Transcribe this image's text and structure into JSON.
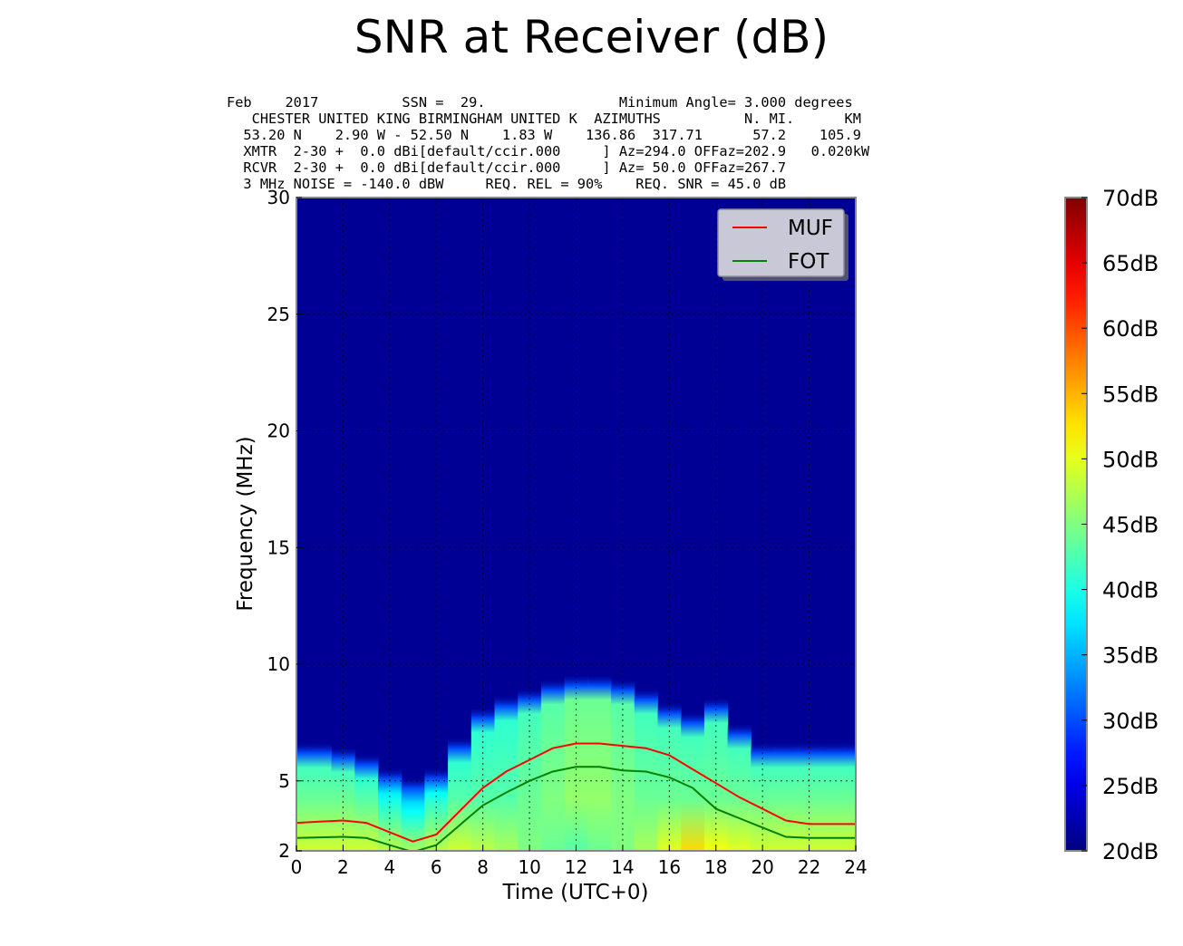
{
  "title": "SNR at Receiver (dB)",
  "header_lines": [
    "Feb    2017          SSN =  29.                Minimum Angle= 3.000 degrees",
    "   CHESTER UNITED KING BIRMINGHAM UNITED K  AZIMUTHS          N. MI.      KM",
    "  53.20 N    2.90 W - 52.50 N    1.83 W    136.86  317.71      57.2    105.9",
    "  XMTR  2-30 +  0.0 dBi[default/ccir.000     ] Az=294.0 OFFaz=202.9   0.020kW",
    "  RCVR  2-30 +  0.0 dBi[default/ccir.000     ] Az= 50.0 OFFaz=267.7",
    "  3 MHz NOISE = -140.0 dBW     REQ. REL = 90%    REQ. SNR = 45.0 dB"
  ],
  "chart_data": {
    "type": "heatmap",
    "xlabel": "Time (UTC+0)",
    "ylabel": "Frequency (MHz)",
    "xlim": [
      0,
      24
    ],
    "ylim": [
      2,
      30
    ],
    "x_ticks": [
      "0",
      "2",
      "4",
      "6",
      "8",
      "10",
      "12",
      "14",
      "16",
      "18",
      "20",
      "22",
      "24"
    ],
    "y_ticks": [
      {
        "value": 2,
        "label": "2"
      },
      {
        "value": 5,
        "label": "5"
      },
      {
        "value": 10,
        "label": "10"
      },
      {
        "value": 15,
        "label": "15"
      },
      {
        "value": 20,
        "label": "20"
      },
      {
        "value": 25,
        "label": "25"
      },
      {
        "value": 30,
        "label": "30"
      }
    ],
    "grid": true,
    "legend_position": "top-right",
    "colorbar": {
      "min": 20,
      "max": 70,
      "ticks": [
        "20dB",
        "25dB",
        "30dB",
        "35dB",
        "40dB",
        "45dB",
        "50dB",
        "55dB",
        "60dB",
        "65dB",
        "70dB"
      ]
    },
    "heatmap": {
      "hours": [
        0,
        1,
        2,
        3,
        4,
        5,
        6,
        7,
        8,
        9,
        10,
        11,
        12,
        13,
        14,
        15,
        16,
        17,
        18,
        19,
        20,
        21,
        22,
        23,
        24
      ],
      "snr_low_db": [
        49,
        49,
        49,
        49,
        48,
        47,
        48,
        49,
        48,
        47,
        45,
        44,
        43,
        44,
        45,
        47,
        50,
        53,
        51,
        50,
        49,
        49,
        49,
        49,
        49
      ],
      "snr_high_db": [
        44,
        44,
        44,
        43,
        40,
        39,
        41,
        43,
        43,
        43,
        44,
        45,
        46,
        46,
        45,
        44,
        44,
        44,
        44,
        44,
        44,
        44,
        44,
        44,
        44
      ],
      "cutoff_mhz": [
        5.8,
        5.8,
        5.6,
        5.3,
        4.7,
        4.3,
        4.7,
        6.0,
        7.3,
        7.8,
        8.1,
        8.5,
        8.7,
        8.7,
        8.5,
        8.1,
        7.5,
        7.1,
        7.7,
        6.6,
        5.8,
        5.8,
        5.8,
        5.8,
        5.8
      ],
      "background_db": 21
    },
    "series": [
      {
        "name": "MUF",
        "color": "#ff0000",
        "x": [
          0,
          1,
          2,
          3,
          4,
          5,
          6,
          7,
          8,
          9,
          10,
          11,
          12,
          13,
          14,
          15,
          16,
          17,
          18,
          19,
          20,
          21,
          22,
          23,
          24
        ],
        "y": [
          3.2,
          3.25,
          3.3,
          3.2,
          2.8,
          2.4,
          2.7,
          3.7,
          4.7,
          5.4,
          5.9,
          6.4,
          6.6,
          6.6,
          6.5,
          6.4,
          6.1,
          5.5,
          4.9,
          4.3,
          3.8,
          3.3,
          3.15,
          3.15,
          3.15
        ]
      },
      {
        "name": "FOT",
        "color": "#008000",
        "x": [
          0,
          1,
          2,
          3,
          4,
          5,
          6,
          7,
          8,
          9,
          10,
          11,
          12,
          13,
          14,
          15,
          16,
          17,
          18,
          19,
          20,
          21,
          22,
          23,
          24
        ],
        "y": [
          2.55,
          2.58,
          2.6,
          2.55,
          2.25,
          1.95,
          2.25,
          3.1,
          3.95,
          4.5,
          5.0,
          5.4,
          5.6,
          5.6,
          5.45,
          5.4,
          5.15,
          4.7,
          3.8,
          3.4,
          3.0,
          2.6,
          2.55,
          2.55,
          2.55
        ]
      }
    ]
  }
}
